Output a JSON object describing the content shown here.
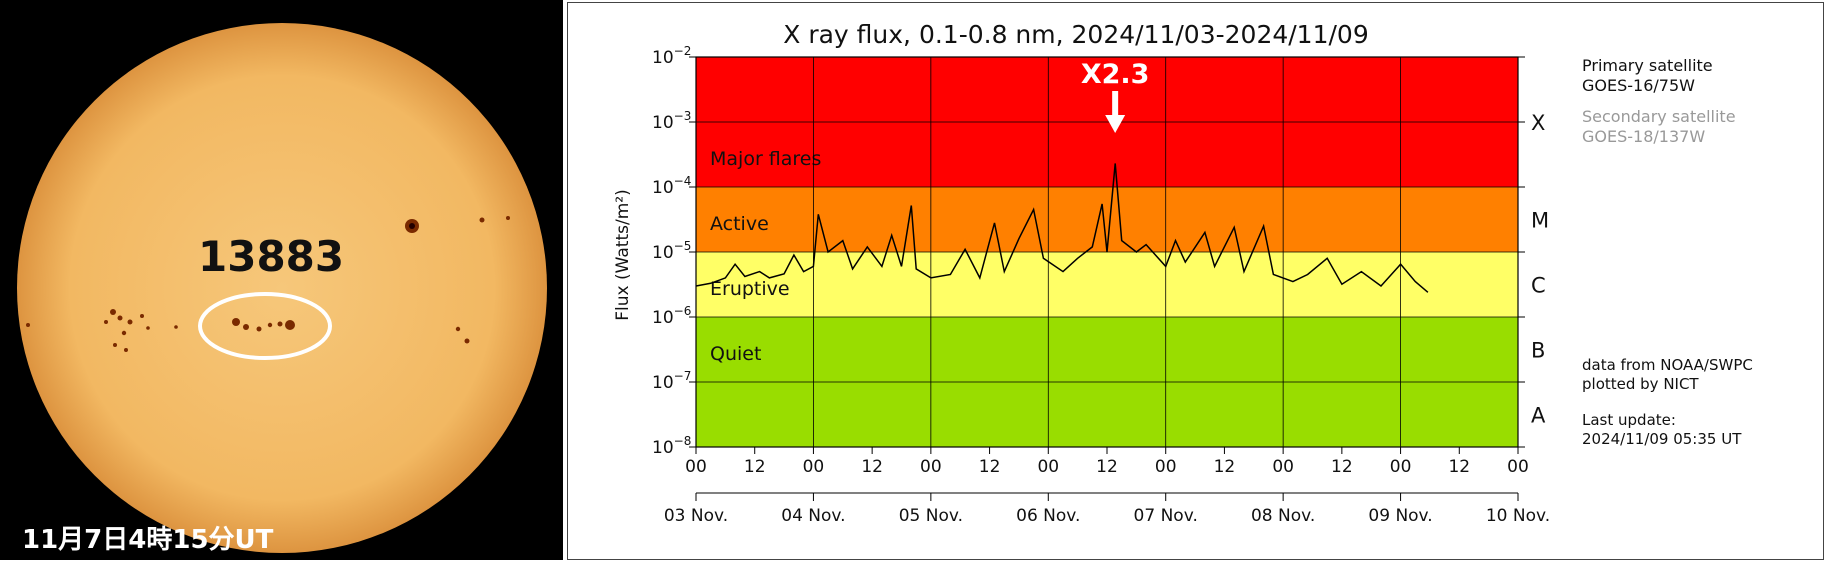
{
  "sun_image": {
    "region_number": "13883",
    "caption": "11月7日4時15分UT"
  },
  "colors": {
    "major": "#ff0000",
    "active": "#ff8000",
    "eruptive": "#ffff66",
    "quiet": "#99dd00",
    "sun_disk": "#f4c06a",
    "sunspot": "#7a2a00"
  },
  "chart_data": {
    "type": "line",
    "title": "X ray flux, 0.1-0.8 nm, 2024/11/03-2024/11/09",
    "ylabel": "Flux (Watts/m²)",
    "yscale": "log",
    "ylim": [
      1e-08,
      0.01
    ],
    "y_ticks": [
      {
        "base": "10",
        "exp": "−2"
      },
      {
        "base": "10",
        "exp": "−3"
      },
      {
        "base": "10",
        "exp": "−4"
      },
      {
        "base": "10",
        "exp": "−5"
      },
      {
        "base": "10",
        "exp": "−6"
      },
      {
        "base": "10",
        "exp": "−7"
      },
      {
        "base": "10",
        "exp": "−8"
      }
    ],
    "x_hour_ticks": [
      "00",
      "12",
      "00",
      "12",
      "00",
      "12",
      "00",
      "12",
      "00",
      "12",
      "00",
      "12",
      "00",
      "12",
      "00"
    ],
    "x_day_labels": [
      "03 Nov.",
      "04 Nov.",
      "05 Nov.",
      "06 Nov.",
      "07 Nov.",
      "08 Nov.",
      "09 Nov.",
      "10 Nov."
    ],
    "bands": [
      {
        "name": "Major flares",
        "class": "X",
        "from": 0.0001,
        "to": 0.01
      },
      {
        "name": "Active",
        "class": "M",
        "from": 1e-05,
        "to": 0.0001
      },
      {
        "name": "Eruptive",
        "class": "C",
        "from": 1e-06,
        "to": 1e-05
      },
      {
        "name": "Quiet",
        "class": "B",
        "from": 1e-07,
        "to": 1e-06
      },
      {
        "name": "",
        "class": "A",
        "from": 1e-08,
        "to": 1e-07
      }
    ],
    "annotation": {
      "text": "X2.3",
      "x": "2024-11-06T13:40",
      "y": 0.00023
    },
    "series": [
      {
        "points": [
          [
            "2024-11-03T00:00",
            3e-06
          ],
          [
            "2024-11-03T03:00",
            3.3e-06
          ],
          [
            "2024-11-03T06:00",
            4e-06
          ],
          [
            "2024-11-03T08:00",
            6.5e-06
          ],
          [
            "2024-11-03T10:00",
            4.2e-06
          ],
          [
            "2024-11-03T13:00",
            5e-06
          ],
          [
            "2024-11-03T15:00",
            4e-06
          ],
          [
            "2024-11-03T18:00",
            4.6e-06
          ],
          [
            "2024-11-03T20:00",
            9e-06
          ],
          [
            "2024-11-03T22:00",
            5e-06
          ],
          [
            "2024-11-04T00:00",
            6e-06
          ],
          [
            "2024-11-04T01:00",
            3.8e-05
          ],
          [
            "2024-11-04T03:00",
            1e-05
          ],
          [
            "2024-11-04T06:00",
            1.5e-05
          ],
          [
            "2024-11-04T08:00",
            5.5e-06
          ],
          [
            "2024-11-04T11:00",
            1.2e-05
          ],
          [
            "2024-11-04T14:00",
            6e-06
          ],
          [
            "2024-11-04T16:00",
            1.8e-05
          ],
          [
            "2024-11-04T18:00",
            6e-06
          ],
          [
            "2024-11-04T20:00",
            5.2e-05
          ],
          [
            "2024-11-04T21:00",
            5.5e-06
          ],
          [
            "2024-11-05T00:00",
            4e-06
          ],
          [
            "2024-11-05T04:00",
            4.5e-06
          ],
          [
            "2024-11-05T07:00",
            1.1e-05
          ],
          [
            "2024-11-05T10:00",
            4e-06
          ],
          [
            "2024-11-05T13:00",
            2.8e-05
          ],
          [
            "2024-11-05T15:00",
            5e-06
          ],
          [
            "2024-11-05T18:00",
            1.6e-05
          ],
          [
            "2024-11-05T21:00",
            4.5e-05
          ],
          [
            "2024-11-05T23:00",
            8e-06
          ],
          [
            "2024-11-06T03:00",
            5e-06
          ],
          [
            "2024-11-06T06:00",
            8e-06
          ],
          [
            "2024-11-06T09:00",
            1.2e-05
          ],
          [
            "2024-11-06T11:00",
            5.5e-05
          ],
          [
            "2024-11-06T12:00",
            1e-05
          ],
          [
            "2024-11-06T13:40",
            0.00023
          ],
          [
            "2024-11-06T15:00",
            1.5e-05
          ],
          [
            "2024-11-06T18:00",
            1e-05
          ],
          [
            "2024-11-06T20:00",
            1.3e-05
          ],
          [
            "2024-11-07T00:00",
            6e-06
          ],
          [
            "2024-11-07T02:00",
            1.5e-05
          ],
          [
            "2024-11-07T04:00",
            7e-06
          ],
          [
            "2024-11-07T08:00",
            2e-05
          ],
          [
            "2024-11-07T10:00",
            6e-06
          ],
          [
            "2024-11-07T14:00",
            2.4e-05
          ],
          [
            "2024-11-07T16:00",
            5e-06
          ],
          [
            "2024-11-07T20:00",
            2.5e-05
          ],
          [
            "2024-11-07T22:00",
            4.5e-06
          ],
          [
            "2024-11-08T02:00",
            3.5e-06
          ],
          [
            "2024-11-08T05:00",
            4.5e-06
          ],
          [
            "2024-11-08T09:00",
            8e-06
          ],
          [
            "2024-11-08T12:00",
            3.2e-06
          ],
          [
            "2024-11-08T16:00",
            5e-06
          ],
          [
            "2024-11-08T20:00",
            3e-06
          ],
          [
            "2024-11-09T00:00",
            6.5e-06
          ],
          [
            "2024-11-09T03:00",
            3.5e-06
          ],
          [
            "2024-11-09T05:35",
            2.4e-06
          ]
        ]
      }
    ]
  },
  "side_panel": {
    "primary_label": "Primary satellite",
    "primary_value": "GOES-16/75W",
    "secondary_label": "Secondary satellite",
    "secondary_value": "GOES-18/137W",
    "source_line1": "data from NOAA/SWPC",
    "source_line2": "plotted by NICT",
    "update_label": "Last update:",
    "update_value": "2024/11/09 05:35 UT"
  }
}
